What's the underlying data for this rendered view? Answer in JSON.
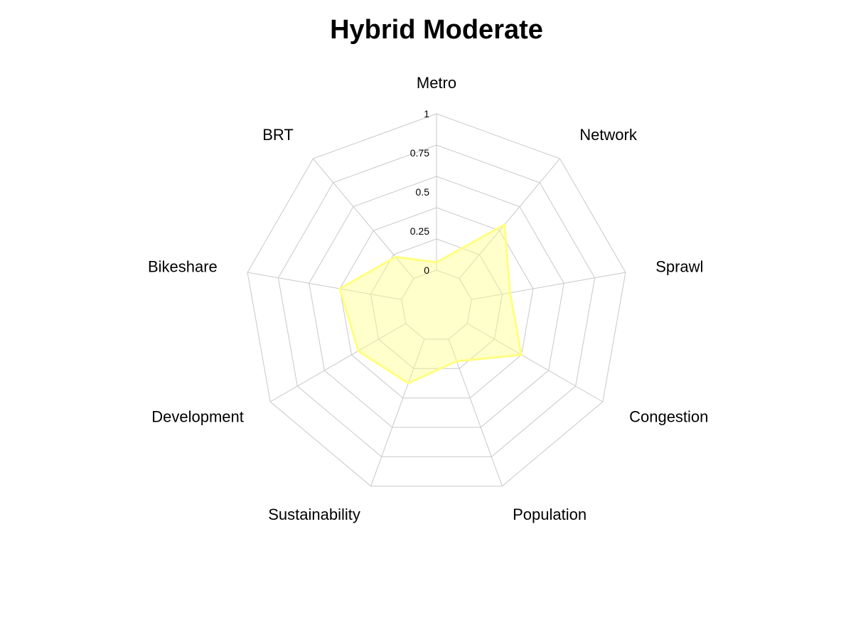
{
  "chart_data": {
    "type": "radar",
    "title": "Hybrid Moderate",
    "axes": [
      "Metro",
      "Network",
      "Sprawl",
      "Congestion",
      "Population",
      "Sustainability",
      "Development",
      "Bikeshare",
      "BRT"
    ],
    "series": [
      {
        "values": [
          0.05,
          0.45,
          0.25,
          0.4,
          0.15,
          0.3,
          0.35,
          0.4,
          0.18
        ],
        "color": "#ffff80"
      }
    ],
    "rlim": [
      0,
      1
    ],
    "ticks": [
      "0",
      "0.25",
      "0.5",
      "0.75",
      "1"
    ],
    "tick_values": [
      0,
      0.25,
      0.5,
      0.75,
      1
    ],
    "grid": true,
    "legend": "none"
  }
}
